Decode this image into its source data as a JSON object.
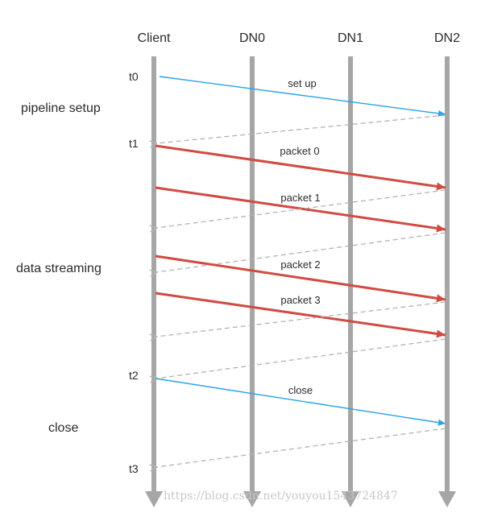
{
  "lanes": {
    "client": "Client",
    "dn0": "DN0",
    "dn1": "DN1",
    "dn2": "DN2"
  },
  "times": {
    "t0": "t0",
    "t1": "t1",
    "t2": "t2",
    "t3": "t3"
  },
  "phases": {
    "setup": "pipeline setup",
    "streaming": "data streaming",
    "close": "close"
  },
  "messages": {
    "setup": "set up",
    "packet0": "packet 0",
    "packet1": "packet 1",
    "packet2": "packet 2",
    "packet3": "packet 3",
    "close": "close"
  },
  "watermark": "https://blog.csdn.net/youyou1543724847",
  "colors": {
    "lifeline": "#a6a6a6",
    "control_arrow": "#29a3e8",
    "data_arrow": "#d24a43",
    "ack_arrow": "#b3b3b3",
    "text": "#2b2b2b"
  }
}
